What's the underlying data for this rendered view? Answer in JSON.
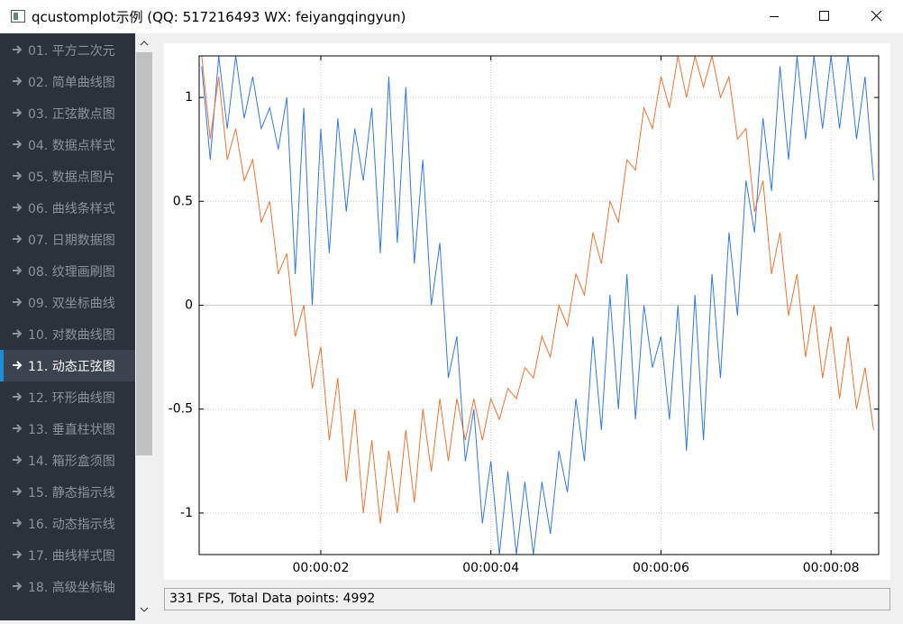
{
  "window": {
    "title": "qcustomplot示例 (QQ: 517216493 WX: feiyangqingyun)"
  },
  "sidebar": {
    "items": [
      {
        "label": "01. 平方二次元"
      },
      {
        "label": "02. 简单曲线图"
      },
      {
        "label": "03. 正弦散点图"
      },
      {
        "label": "04. 数据点样式"
      },
      {
        "label": "05. 数据点图片"
      },
      {
        "label": "06. 曲线条样式"
      },
      {
        "label": "07. 日期数据图"
      },
      {
        "label": "08. 纹理画刷图"
      },
      {
        "label": "09. 双坐标曲线"
      },
      {
        "label": "10. 对数曲线图"
      },
      {
        "label": "11. 动态正弦图",
        "selected": true
      },
      {
        "label": "12. 环形曲线图"
      },
      {
        "label": "13. 垂直柱状图"
      },
      {
        "label": "14. 箱形盒须图"
      },
      {
        "label": "15. 静态指示线"
      },
      {
        "label": "16. 动态指示线"
      },
      {
        "label": "17. 曲线样式图"
      },
      {
        "label": "18. 高级坐标轴"
      }
    ]
  },
  "chart_data": {
    "type": "line",
    "x": [
      0.6,
      0.7,
      0.8,
      0.9,
      1.0,
      1.1,
      1.2,
      1.3,
      1.4,
      1.5,
      1.6,
      1.7,
      1.8,
      1.9,
      2.0,
      2.1,
      2.2,
      2.3,
      2.4,
      2.5,
      2.6,
      2.7,
      2.8,
      2.9,
      3.0,
      3.1,
      3.2,
      3.3,
      3.4,
      3.5,
      3.6,
      3.7,
      3.8,
      3.9,
      4.0,
      4.1,
      4.2,
      4.3,
      4.4,
      4.5,
      4.6,
      4.7,
      4.8,
      4.9,
      5.0,
      5.1,
      5.2,
      5.3,
      5.4,
      5.5,
      5.6,
      5.7,
      5.8,
      5.9,
      6.0,
      6.1,
      6.2,
      6.3,
      6.4,
      6.5,
      6.6,
      6.7,
      6.8,
      6.9,
      7.0,
      7.1,
      7.2,
      7.3,
      7.4,
      7.5,
      7.6,
      7.7,
      7.8,
      7.9,
      8.0,
      8.1,
      8.2,
      8.3,
      8.4,
      8.5
    ],
    "series": [
      {
        "color": "#3278ee",
        "values": [
          1.15,
          0.7,
          1.2,
          0.85,
          1.2,
          0.9,
          1.1,
          0.85,
          0.95,
          0.75,
          1.0,
          0.15,
          0.95,
          0.0,
          0.85,
          0.25,
          0.9,
          0.45,
          0.85,
          0.6,
          0.95,
          0.25,
          1.1,
          0.3,
          1.05,
          0.2,
          0.7,
          0.0,
          0.3,
          -0.35,
          -0.15,
          -0.75,
          -0.5,
          -1.05,
          -0.75,
          -1.2,
          -0.8,
          -1.2,
          -0.85,
          -1.2,
          -0.85,
          -1.1,
          -0.7,
          -0.9,
          -0.45,
          -0.75,
          -0.15,
          -0.6,
          0.05,
          -0.5,
          0.15,
          -0.55,
          0.0,
          -0.3,
          -0.15,
          -0.55,
          0.0,
          -0.7,
          0.05,
          -0.65,
          0.15,
          -0.35,
          0.35,
          -0.05,
          0.6,
          0.35,
          0.9,
          0.55,
          1.15,
          0.7,
          1.2,
          0.8,
          1.2,
          0.85,
          1.2,
          0.85,
          1.2,
          0.8,
          1.1,
          0.6
        ]
      },
      {
        "color": "#f47230",
        "values": [
          1.2,
          0.8,
          1.1,
          0.7,
          0.85,
          0.6,
          0.7,
          0.4,
          0.5,
          0.15,
          0.25,
          -0.15,
          0.0,
          -0.4,
          -0.2,
          -0.65,
          -0.35,
          -0.85,
          -0.5,
          -1.0,
          -0.65,
          -1.05,
          -0.7,
          -1.0,
          -0.6,
          -0.95,
          -0.5,
          -0.8,
          -0.45,
          -0.75,
          -0.45,
          -0.65,
          -0.45,
          -0.65,
          -0.45,
          -0.55,
          -0.4,
          -0.45,
          -0.3,
          -0.35,
          -0.15,
          -0.25,
          0.0,
          -0.1,
          0.15,
          0.05,
          0.35,
          0.2,
          0.5,
          0.4,
          0.7,
          0.65,
          0.95,
          0.85,
          1.1,
          0.95,
          1.2,
          1.0,
          1.2,
          1.05,
          1.2,
          1.0,
          1.1,
          0.8,
          0.85,
          0.45,
          0.6,
          0.15,
          0.35,
          -0.05,
          0.15,
          -0.25,
          0.0,
          -0.35,
          -0.1,
          -0.45,
          -0.15,
          -0.5,
          -0.3,
          -0.6
        ]
      }
    ],
    "xlim": [
      0.57,
      8.56
    ],
    "ylim": [
      -1.2,
      1.2
    ],
    "xticks": [
      {
        "value": 2,
        "label": "00:00:02"
      },
      {
        "value": 4,
        "label": "00:00:04"
      },
      {
        "value": 6,
        "label": "00:00:06"
      },
      {
        "value": 8,
        "label": "00:00:08"
      }
    ],
    "yticks": [
      -1,
      -0.5,
      0,
      0.5,
      1
    ],
    "grid": true
  },
  "status": {
    "text": "331 FPS, Total Data points: 4992"
  }
}
